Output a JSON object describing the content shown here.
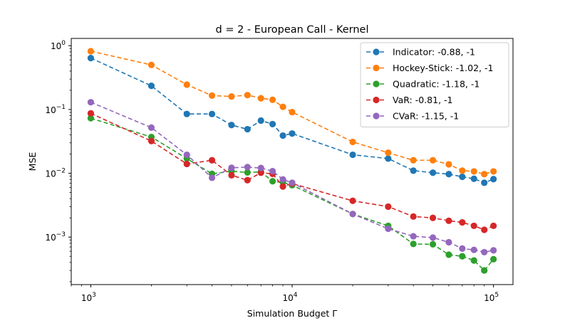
{
  "chart_data": {
    "type": "line",
    "title": "d = 2 - European Call - Kernel",
    "xlabel": "Simulation Budget Γ",
    "ylabel": "MSE",
    "xscale": "log",
    "yscale": "log",
    "xlim": [
      800,
      125000
    ],
    "ylim": [
      0.00018,
      1.3
    ],
    "grid": false,
    "legend_position": "top-right",
    "x_ticks": [
      {
        "value": 1000,
        "base": "10",
        "exp": "3"
      },
      {
        "value": 10000,
        "base": "10",
        "exp": "4"
      },
      {
        "value": 100000,
        "base": "10",
        "exp": "5"
      }
    ],
    "y_ticks": [
      {
        "value": 1,
        "base": "10",
        "exp": "0"
      },
      {
        "value": 0.1,
        "base": "10",
        "exp": "−1"
      },
      {
        "value": 0.01,
        "base": "10",
        "exp": "−2"
      },
      {
        "value": 0.001,
        "base": "10",
        "exp": "−3"
      }
    ],
    "x": [
      1000,
      2000,
      3000,
      4000,
      5000,
      6000,
      7000,
      8000,
      9000,
      10000,
      20000,
      30000,
      40000,
      50000,
      60000,
      70000,
      80000,
      90000,
      100000
    ],
    "series": [
      {
        "name": "Indicator: -0.88, -1",
        "color": "#1f77b4",
        "values": [
          0.64,
          0.235,
          0.085,
          0.085,
          0.057,
          0.049,
          0.067,
          0.059,
          0.039,
          0.042,
          0.0195,
          0.017,
          0.011,
          0.0102,
          0.0097,
          0.0088,
          0.0082,
          0.0071,
          0.0081
        ]
      },
      {
        "name": "Hockey-Stick: -1.02, -1",
        "color": "#ff7f0e",
        "values": [
          0.82,
          0.5,
          0.245,
          0.165,
          0.16,
          0.168,
          0.15,
          0.142,
          0.11,
          0.091,
          0.031,
          0.021,
          0.016,
          0.016,
          0.0138,
          0.011,
          0.0107,
          0.0097,
          0.0107
        ]
      },
      {
        "name": "Quadratic: -1.18, -1",
        "color": "#2ca02c",
        "values": [
          0.073,
          0.037,
          0.017,
          0.0098,
          0.0108,
          0.0103,
          0.0105,
          0.0075,
          0.0072,
          0.0065,
          0.0023,
          0.0015,
          0.00078,
          0.00077,
          0.00053,
          0.0005,
          0.00043,
          0.0003,
          0.00045
        ]
      },
      {
        "name": "VaR: -0.81, -1",
        "color": "#d62728",
        "values": [
          0.087,
          0.032,
          0.014,
          0.016,
          0.0093,
          0.0078,
          0.0102,
          0.0098,
          0.0062,
          0.0069,
          0.0037,
          0.003,
          0.0021,
          0.002,
          0.0018,
          0.0017,
          0.0015,
          0.0013,
          0.0015
        ]
      },
      {
        "name": "CVaR: -1.15, -1",
        "color": "#9467bd",
        "values": [
          0.13,
          0.052,
          0.0195,
          0.0085,
          0.0122,
          0.0125,
          0.0121,
          0.0108,
          0.008,
          0.0071,
          0.0023,
          0.00135,
          0.00103,
          0.00098,
          0.00083,
          0.00066,
          0.00063,
          0.00058,
          0.00062
        ]
      }
    ]
  }
}
